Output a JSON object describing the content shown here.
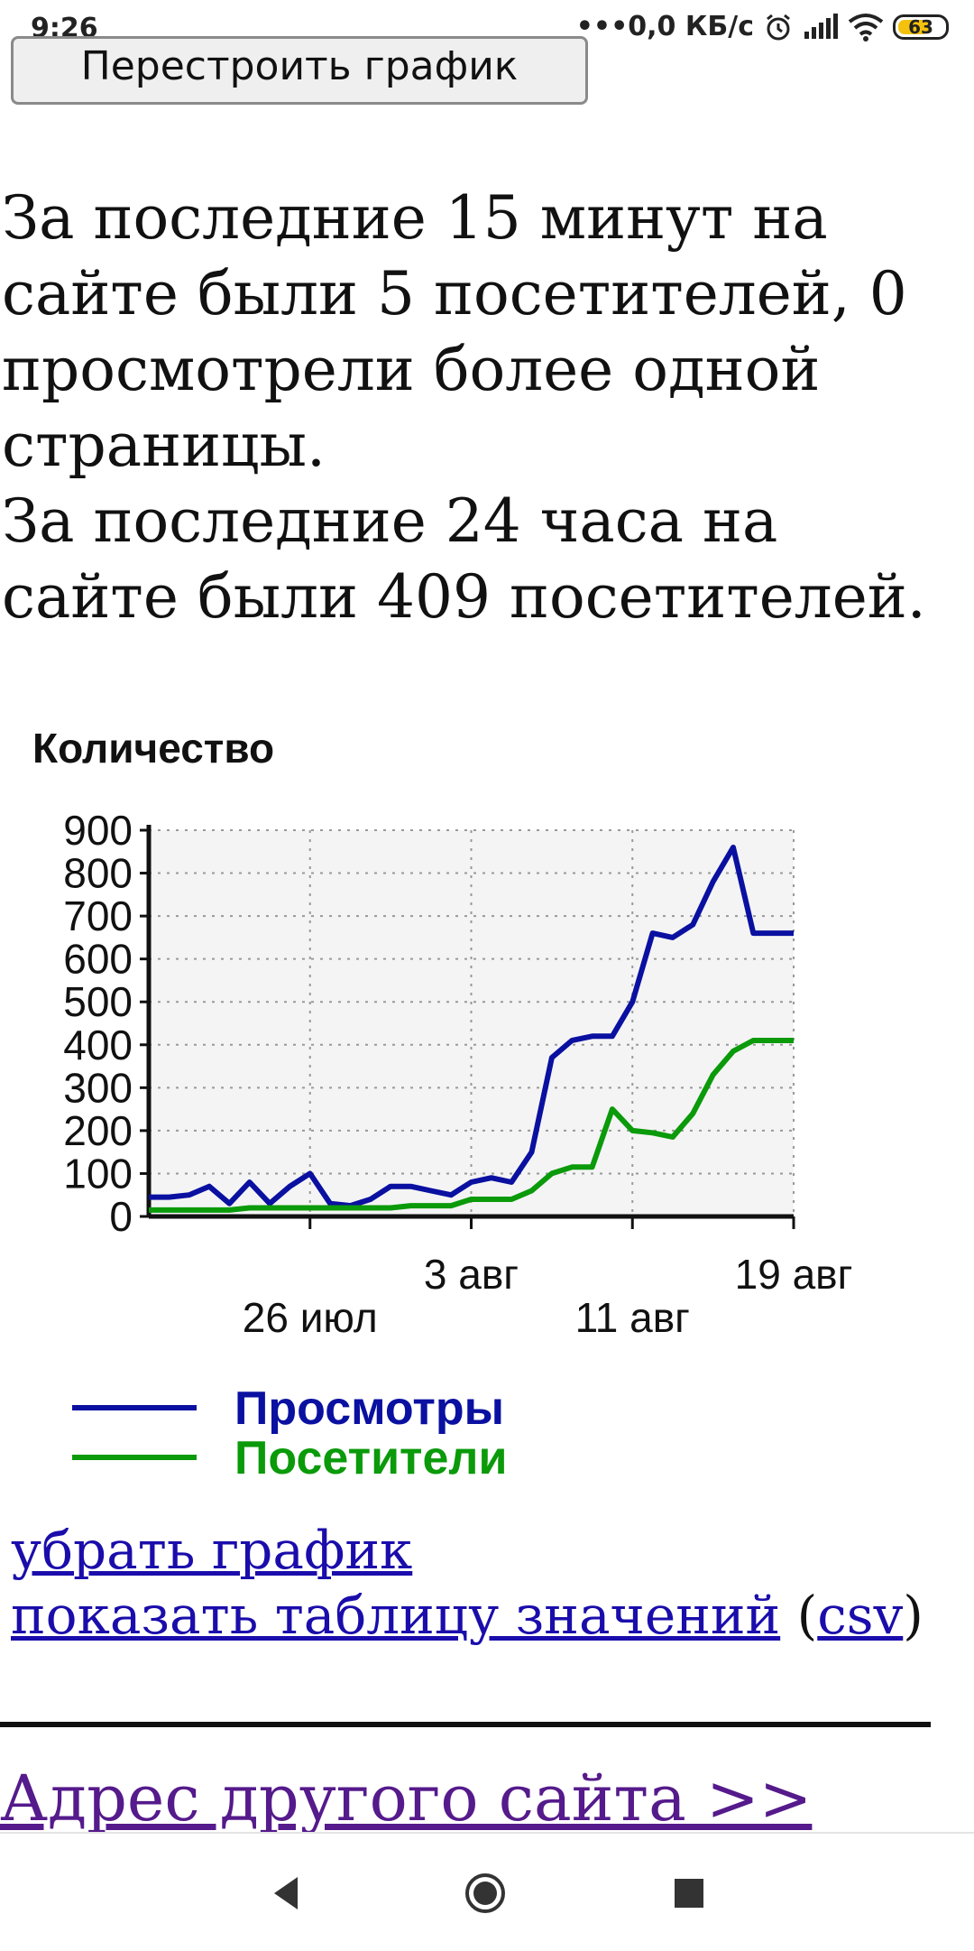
{
  "status_bar": {
    "time": "9:26",
    "net_speed": "•••0,0 КБ/с",
    "battery": "63",
    "icons": [
      "alarm-icon",
      "signal-icon",
      "wifi-icon",
      "battery-icon"
    ]
  },
  "rebuild_button": {
    "label": "Перестроить график"
  },
  "stats": {
    "line1": "За последние 15 минут на сайте были 5 посетителей, 0 просмотрели более одной страницы.",
    "line2": "За последние 24 часа на сайте были 409 посетителей."
  },
  "chart_data": {
    "type": "line",
    "title": "Количество",
    "ylim": [
      0,
      900
    ],
    "y_ticks": [
      "0",
      "100",
      "200",
      "300",
      "400",
      "500",
      "600",
      "700",
      "800",
      "900"
    ],
    "x_ticks": [
      "26 июл",
      "3 авг",
      "11 авг",
      "19 авг"
    ],
    "grid": true,
    "legend_position": "bottom",
    "x": [
      "18 июл",
      "19 июл",
      "20 июл",
      "21 июл",
      "22 июл",
      "23 июл",
      "24 июл",
      "25 июл",
      "26 июл",
      "27 июл",
      "28 июл",
      "29 июл",
      "30 июл",
      "31 июл",
      "1 авг",
      "2 авг",
      "3 авг",
      "4 авг",
      "5 авг",
      "6 авг",
      "7 авг",
      "8 авг",
      "9 авг",
      "10 авг",
      "11 авг",
      "12 авг",
      "13 авг",
      "14 авг",
      "15 авг",
      "16 авг",
      "17 авг",
      "18 авг",
      "19 авг"
    ],
    "series": [
      {
        "name": "Просмотры",
        "color": "#0a10a0",
        "values": [
          45,
          45,
          50,
          70,
          30,
          80,
          30,
          70,
          100,
          30,
          25,
          40,
          70,
          70,
          60,
          50,
          80,
          90,
          80,
          150,
          370,
          410,
          420,
          420,
          500,
          660,
          650,
          680,
          780,
          860,
          660,
          660,
          660
        ]
      },
      {
        "name": "Посетители",
        "color": "#0a9a0a",
        "values": [
          15,
          15,
          15,
          15,
          15,
          20,
          20,
          20,
          20,
          20,
          20,
          20,
          20,
          25,
          25,
          25,
          40,
          40,
          40,
          60,
          100,
          115,
          115,
          250,
          200,
          195,
          185,
          240,
          330,
          385,
          410,
          410,
          410
        ]
      }
    ]
  },
  "links": {
    "hide_chart": "убрать график",
    "show_table": "показать таблицу значений",
    "paren_open": "(",
    "csv": "csv",
    "paren_close": ")"
  },
  "other_site": {
    "label": "Адрес другого сайта >>"
  },
  "nav": {
    "icons": [
      "back-icon",
      "home-icon",
      "recents-icon"
    ]
  }
}
